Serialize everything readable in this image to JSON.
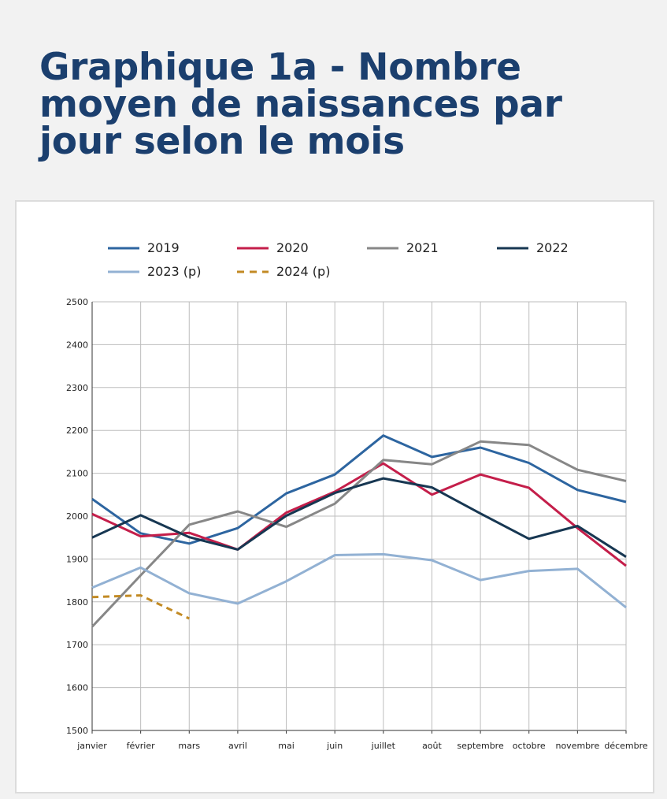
{
  "title": "Graphique 1a - Nombre moyen de naissances par jour selon le mois",
  "chart_data": {
    "type": "line",
    "categories": [
      "janvier",
      "février",
      "mars",
      "avril",
      "mai",
      "juin",
      "juillet",
      "août",
      "septembre",
      "octobre",
      "novembre",
      "décembre"
    ],
    "ylim": [
      1500,
      2500
    ],
    "yticks": [
      1500,
      1600,
      1700,
      1800,
      1900,
      2000,
      2100,
      2200,
      2300,
      2400,
      2500
    ],
    "grid": true,
    "legend_position": "top",
    "series": [
      {
        "name": "2019",
        "color": "#2d65a0",
        "dashed": false,
        "values": [
          2040,
          1960,
          1936,
          1972,
          2053,
          2097,
          2188,
          2138,
          2160,
          2124,
          2061,
          2033
        ]
      },
      {
        "name": "2020",
        "color": "#c41e4a",
        "dashed": false,
        "values": [
          2005,
          1953,
          1961,
          1922,
          2008,
          2057,
          2123,
          2050,
          2097,
          2066,
          1972,
          1884
        ]
      },
      {
        "name": "2021",
        "color": "#878787",
        "dashed": false,
        "values": [
          1742,
          1862,
          1980,
          2011,
          1975,
          2029,
          2131,
          2121,
          2174,
          2166,
          2108,
          2082
        ]
      },
      {
        "name": "2022",
        "color": "#173752",
        "dashed": false,
        "values": [
          1950,
          2002,
          1951,
          1922,
          2001,
          2054,
          2088,
          2067,
          2006,
          1947,
          1977,
          1905
        ]
      },
      {
        "name": "2023 (p)",
        "color": "#92b1d3",
        "dashed": false,
        "values": [
          1833,
          1880,
          1820,
          1796,
          1848,
          1909,
          1911,
          1897,
          1851,
          1872,
          1877,
          1787
        ]
      },
      {
        "name": "2024 (p)",
        "color": "#c28a24",
        "dashed": true,
        "values": [
          1811,
          1815,
          1761,
          null,
          null,
          null,
          null,
          null,
          null,
          null,
          null,
          null
        ]
      }
    ]
  }
}
